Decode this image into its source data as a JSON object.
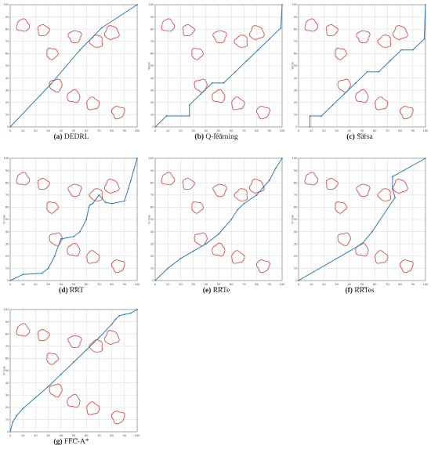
{
  "axis": {
    "xlim": [
      0,
      100
    ],
    "ylim": [
      0,
      100
    ],
    "ticks": [
      0,
      10,
      20,
      30,
      40,
      50,
      60,
      70,
      80,
      90,
      100
    ],
    "grid": true
  },
  "colors": {
    "path": "#2b7bba",
    "obstacle": "#e03a2f",
    "grid": "#dedede",
    "frame": "#888888"
  },
  "obstacles": [
    {
      "cx": 10,
      "cy": 83,
      "r": 5.0
    },
    {
      "cx": 26,
      "cy": 79,
      "r": 4.5
    },
    {
      "cx": 51,
      "cy": 74,
      "r": 5.0
    },
    {
      "cx": 68,
      "cy": 70,
      "r": 5.0
    },
    {
      "cx": 80,
      "cy": 77,
      "r": 5.5
    },
    {
      "cx": 33,
      "cy": 60,
      "r": 4.5
    },
    {
      "cx": 36,
      "cy": 34,
      "r": 5.0
    },
    {
      "cx": 50,
      "cy": 25,
      "r": 5.0
    },
    {
      "cx": 65,
      "cy": 19,
      "r": 5.0
    },
    {
      "cx": 85,
      "cy": 12,
      "r": 5.0
    }
  ],
  "chart_data": [
    {
      "type": "line",
      "caption_label": "(a)",
      "caption_text": "DEDRL",
      "xlabel": "",
      "ylabel": "",
      "x": [
        0,
        32,
        55,
        72,
        100
      ],
      "y": [
        0,
        35,
        63,
        81,
        100
      ]
    },
    {
      "type": "line",
      "caption_label": "(b)",
      "caption_text": "Q-learning",
      "xlabel": "X/mm",
      "ylabel": "Y/mm",
      "x": [
        0,
        9,
        27,
        27,
        36,
        45,
        54,
        63,
        72,
        81,
        90,
        99,
        100
      ],
      "y": [
        0,
        9,
        9,
        18,
        27,
        36,
        36,
        45,
        54,
        63,
        72,
        81,
        100
      ]
    },
    {
      "type": "line",
      "caption_label": "(c)",
      "caption_text": "Sarsa",
      "xlabel": "X/mm",
      "ylabel": "Y/mm",
      "x": [
        9,
        9,
        18,
        27,
        36,
        45,
        54,
        63,
        72,
        81,
        90,
        99,
        100
      ],
      "y": [
        0,
        9,
        9,
        18,
        27,
        36,
        45,
        45,
        54,
        63,
        63,
        72,
        100
      ]
    },
    {
      "type": "line",
      "caption_label": "(d)",
      "caption_text": "RRT",
      "xlabel": "X/ mile",
      "ylabel": "Y/ mile",
      "x": [
        0,
        10,
        25,
        30,
        35,
        40,
        45,
        50,
        55,
        60,
        62,
        63,
        65,
        70,
        75,
        80,
        90,
        93,
        95,
        100
      ],
      "y": [
        0,
        5,
        6,
        10,
        20,
        34,
        35,
        36,
        40,
        50,
        60,
        62,
        63,
        70,
        64,
        63,
        65,
        75,
        82,
        100
      ]
    },
    {
      "type": "line",
      "caption_label": "(e)",
      "caption_text": "RRTe",
      "xlabel": "X/ mile",
      "ylabel": "Y/ mile",
      "x": [
        0,
        10,
        20,
        30,
        40,
        50,
        60,
        65,
        70,
        80,
        85,
        90,
        95,
        100
      ],
      "y": [
        0,
        10,
        18,
        24,
        30,
        38,
        50,
        58,
        63,
        70,
        76,
        82,
        92,
        100
      ]
    },
    {
      "type": "line",
      "caption_label": "(f)",
      "caption_text": "RRTes",
      "xlabel": "X/ mile",
      "ylabel": "Y/ mile",
      "x": [
        0,
        50,
        58,
        76,
        74,
        74,
        100
      ],
      "y": [
        0,
        30,
        40,
        68,
        75,
        85,
        100
      ]
    },
    {
      "type": "line",
      "caption_label": "(g)",
      "caption_text": "FFC-A*",
      "xlabel": "X/ mile",
      "ylabel": "Y/ mile",
      "x": [
        0,
        2,
        5,
        10,
        20,
        30,
        40,
        50,
        60,
        70,
        80,
        83,
        86,
        90,
        95,
        100
      ],
      "y": [
        0,
        8,
        13,
        19,
        28,
        37,
        47,
        57,
        67,
        77,
        88,
        92,
        95,
        96,
        97,
        100
      ]
    }
  ]
}
